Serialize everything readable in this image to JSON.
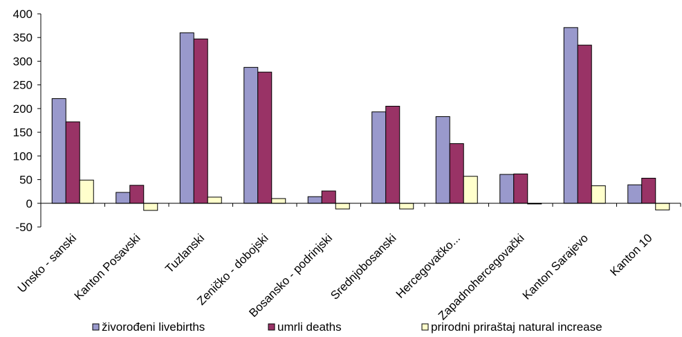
{
  "chart_data": {
    "type": "bar",
    "title": "",
    "xlabel": "",
    "ylabel": "",
    "categories": [
      "Unsko - sanski",
      "Kanton Posavski",
      "Tuzlanski",
      "Zeničko - dobojski",
      "Bosansko - podrinjski",
      "Srednjobosanski",
      "Hercegovačko...",
      "Zapadnohercegovački",
      "Kanton Sarajevo",
      "Kanton 10"
    ],
    "series": [
      {
        "name": "živorođeni livebirths",
        "color": "#9999CC",
        "values": [
          221,
          23,
          360,
          287,
          14,
          193,
          183,
          61,
          371,
          39
        ]
      },
      {
        "name": "umrli deaths",
        "color": "#993366",
        "values": [
          172,
          38,
          347,
          277,
          26,
          205,
          126,
          62,
          334,
          53
        ]
      },
      {
        "name": "prirodni priraštaj natural increase",
        "color": "#FFFFCC",
        "values": [
          49,
          -15,
          13,
          10,
          -12,
          -12,
          57,
          -1,
          37,
          -14
        ]
      }
    ],
    "ylim": [
      -50,
      400
    ],
    "yticks": [
      -50,
      0,
      50,
      100,
      150,
      200,
      250,
      300,
      350,
      400
    ],
    "grid": false,
    "legend_position": "bottom"
  }
}
